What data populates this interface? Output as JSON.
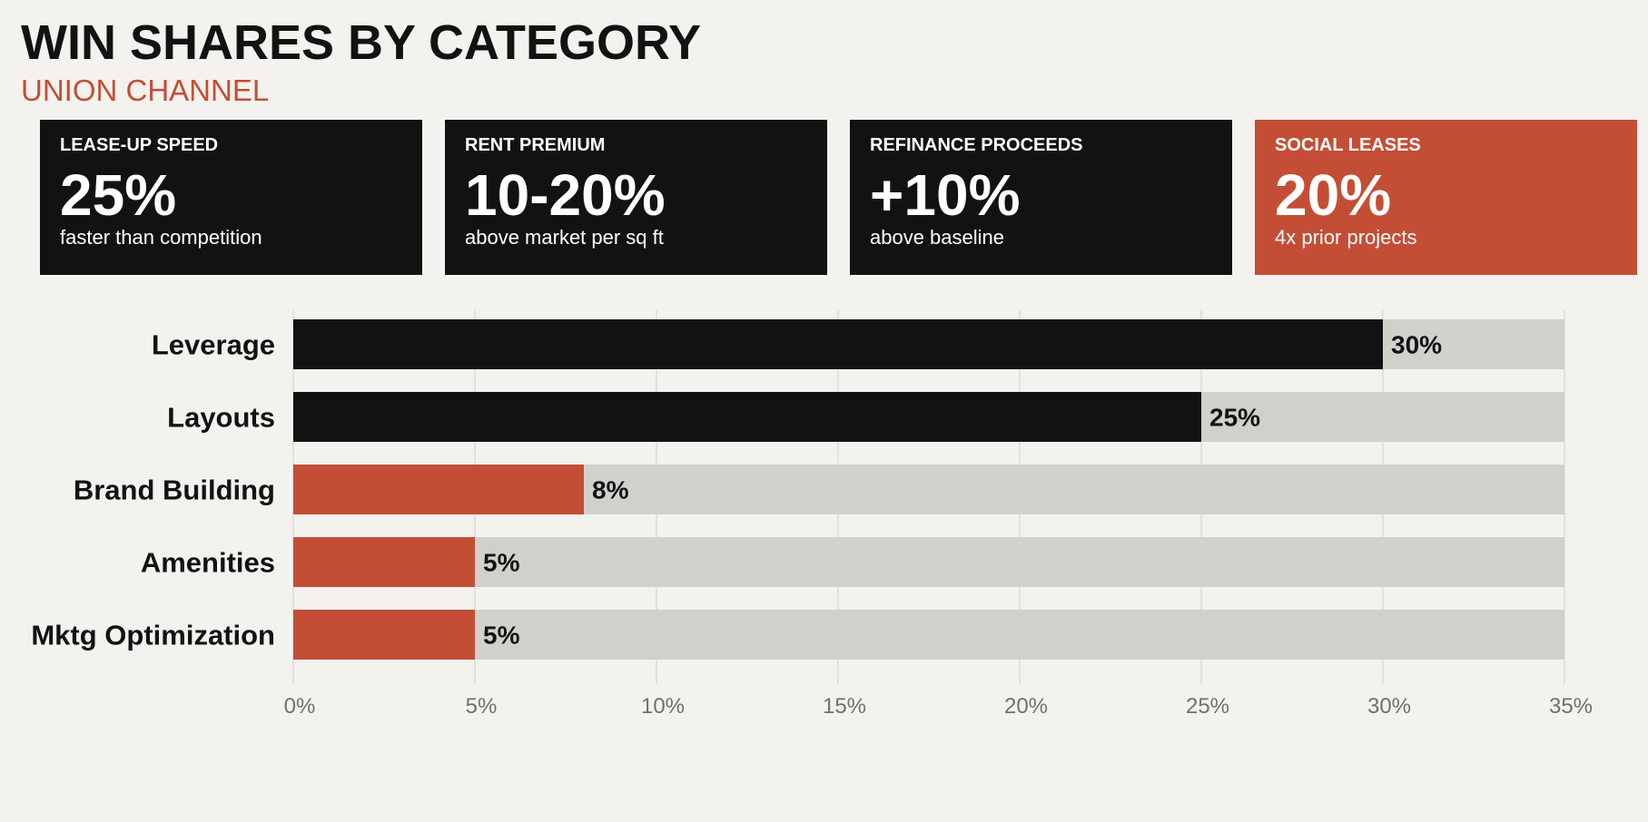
{
  "title": "WIN SHARES BY CATEGORY",
  "subtitle": "UNION CHANNEL",
  "colors": {
    "background": "#f4f2ee",
    "dark": "#121212",
    "accent": "#c44e35",
    "track": "#d2d0cb",
    "grid": "#d2d0cb",
    "tick": "#707070"
  },
  "kpis": [
    {
      "label": "LEASE-UP SPEED",
      "value": "25%",
      "desc": "faster than competition",
      "color": "#121212"
    },
    {
      "label": "RENT PREMIUM",
      "value": "10-20%",
      "desc": "above market per sq ft",
      "color": "#121212"
    },
    {
      "label": "REFINANCE PROCEEDS",
      "value": "+10%",
      "desc": "above baseline",
      "color": "#121212"
    },
    {
      "label": "SOCIAL LEASES",
      "value": "20%",
      "desc": "4x prior projects",
      "color": "#c44e35"
    }
  ],
  "chart_data": {
    "type": "bar",
    "orientation": "horizontal",
    "categories": [
      "Leverage",
      "Layouts",
      "Brand Building",
      "Amenities",
      "Mktg Optimization"
    ],
    "values": [
      30,
      25,
      8,
      5,
      5
    ],
    "value_labels": [
      "30%",
      "25%",
      "8%",
      "5%",
      "5%"
    ],
    "bar_colors": [
      "#121212",
      "#121212",
      "#c44e35",
      "#c44e35",
      "#c44e35"
    ],
    "xlim": [
      0,
      35
    ],
    "xticks": [
      0,
      5,
      10,
      15,
      20,
      25,
      30,
      35
    ],
    "xtick_labels": [
      "0%",
      "5%",
      "10%",
      "15%",
      "20%",
      "25%",
      "30%",
      "35%"
    ],
    "grid": "vertical",
    "background_track": true
  }
}
